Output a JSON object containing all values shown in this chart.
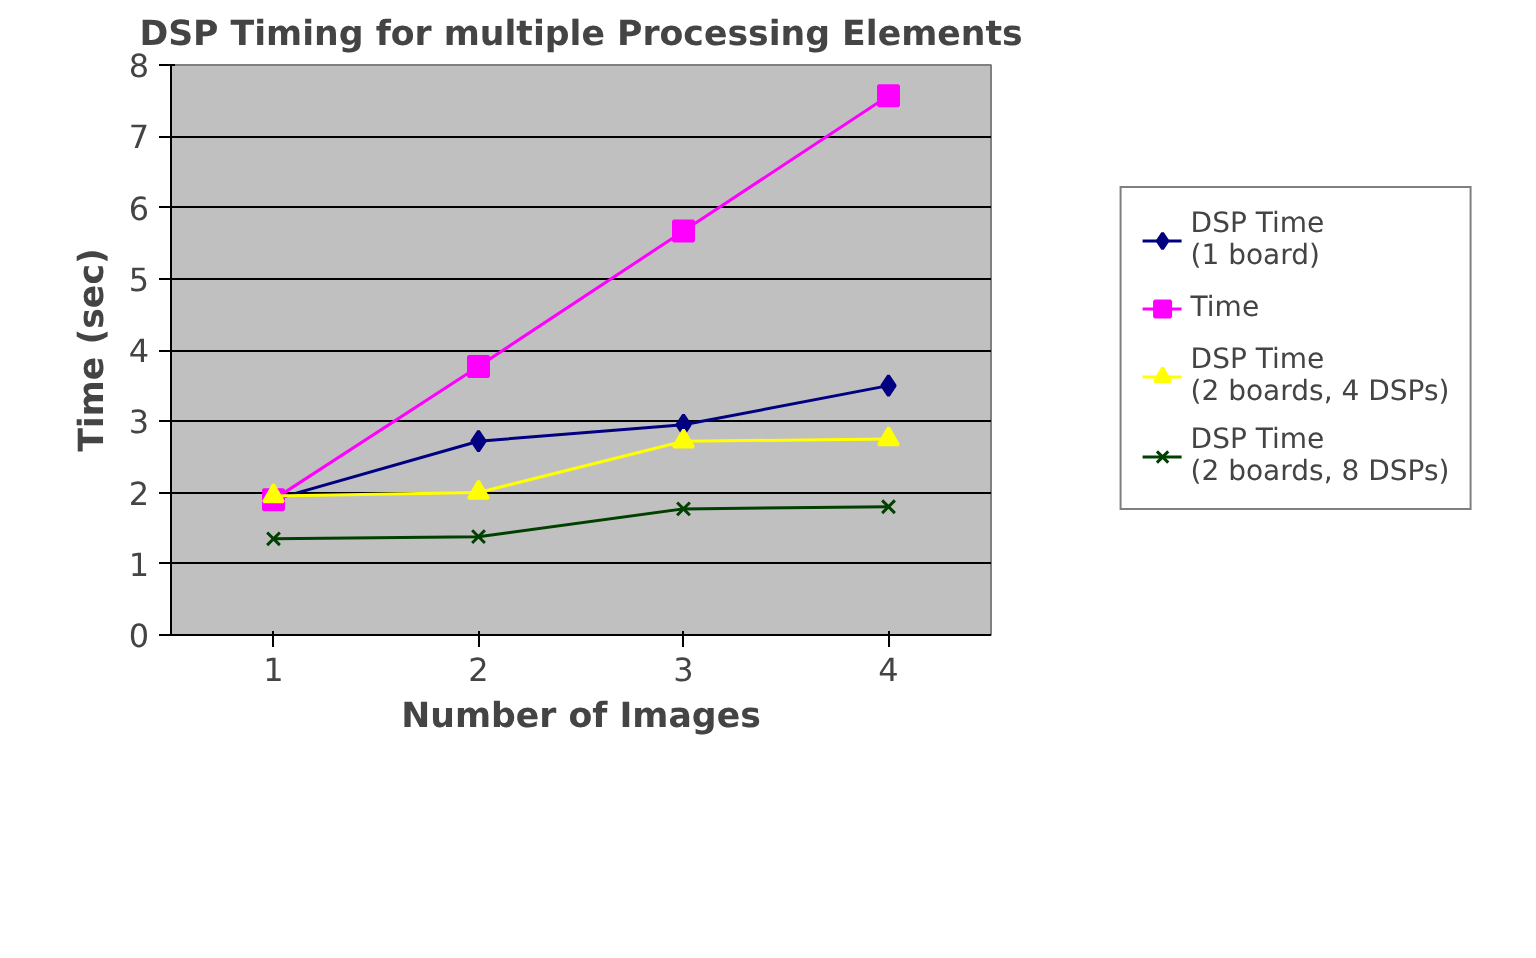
{
  "chart_data": {
    "type": "line",
    "title": "DSP Timing for multiple Processing Elements",
    "xlabel": "Number of Images",
    "ylabel": "Time (sec)",
    "categories": [
      "1",
      "2",
      "3",
      "4"
    ],
    "ylim": [
      0,
      8
    ],
    "yticks": [
      0,
      1,
      2,
      3,
      4,
      5,
      6,
      7,
      8
    ],
    "grid": "y",
    "legend": "right",
    "line_style": "solid",
    "series": [
      {
        "name": "DSP Time (1 board)",
        "color": "#000080",
        "marker": "diamond",
        "values": [
          1.9,
          2.72,
          2.95,
          3.5
        ]
      },
      {
        "name": "Time",
        "color": "#ff00ff",
        "marker": "square",
        "values": [
          1.9,
          3.77,
          5.67,
          7.57
        ]
      },
      {
        "name": "DSP Time (2 boards, 4 DSPs)",
        "color": "#ffff00",
        "marker": "triangle",
        "values": [
          1.95,
          2.0,
          2.72,
          2.75
        ]
      },
      {
        "name": "DSP Time (2 boards, 8 DSPs)",
        "color": "#004000",
        "marker": "cross",
        "values": [
          1.35,
          1.38,
          1.77,
          1.8
        ]
      }
    ]
  }
}
